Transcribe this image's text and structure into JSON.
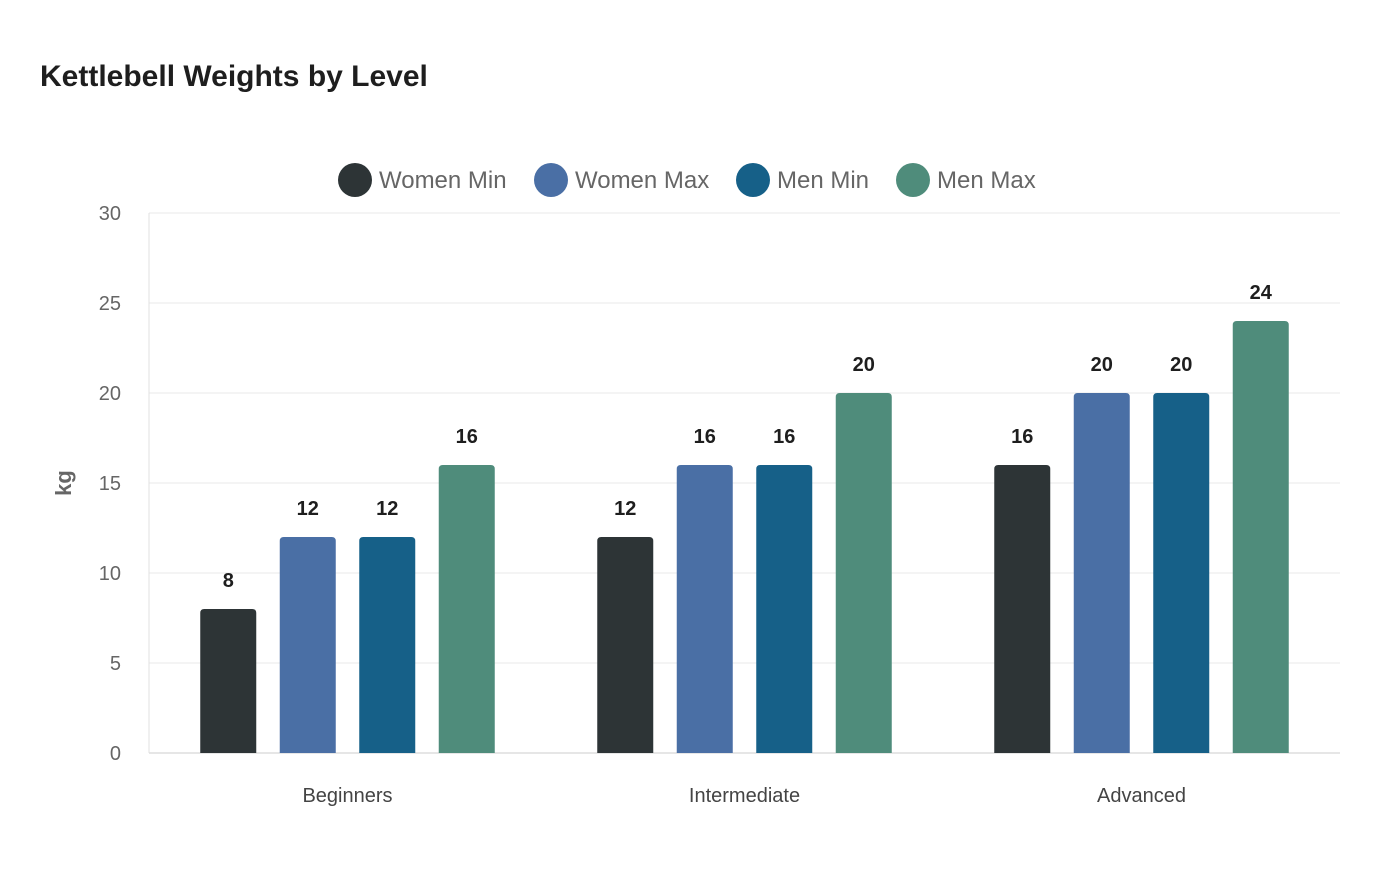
{
  "chart_data": {
    "type": "bar",
    "title": "Kettlebell Weights by Level",
    "xlabel": "",
    "ylabel": "kg",
    "ylim": [
      0,
      30
    ],
    "yticks": [
      0,
      5,
      10,
      15,
      20,
      25,
      30
    ],
    "grid": true,
    "legend_position": "top",
    "categories": [
      "Beginners",
      "Intermediate",
      "Advanced"
    ],
    "series": [
      {
        "name": "Women Min",
        "values": [
          8,
          12,
          16
        ],
        "color": "#2d3436"
      },
      {
        "name": "Women Max",
        "values": [
          12,
          16,
          20
        ],
        "color": "#4a6fa5"
      },
      {
        "name": "Men Min",
        "values": [
          12,
          16,
          20
        ],
        "color": "#166088"
      },
      {
        "name": "Men Max",
        "values": [
          16,
          20,
          24
        ],
        "color": "#4f8c7b"
      }
    ]
  }
}
